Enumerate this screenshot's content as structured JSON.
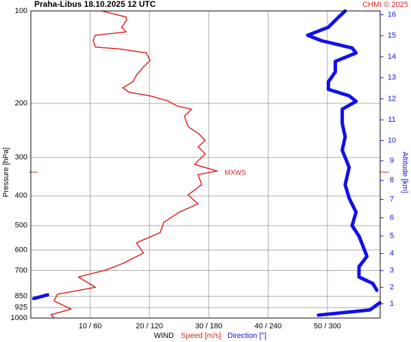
{
  "chart_data": {
    "type": "line",
    "title": "Praha-Libus    18.10.2025 12 UTC",
    "credit": "CHMI © 2025",
    "ylabel": "Pressure [hPa]",
    "y2label": "Altitude [km]",
    "xlabel_parts": [
      "WIND",
      "Speed [m/s]",
      "Direction [°]"
    ],
    "ylim": [
      100,
      1000
    ],
    "log_y": true,
    "yticks": [
      100,
      200,
      300,
      400,
      500,
      600,
      700,
      850,
      925,
      1000
    ],
    "y2ticks": [
      1,
      2,
      3,
      4,
      5,
      6,
      7,
      8,
      9,
      10,
      11,
      12,
      13,
      14,
      15,
      16
    ],
    "xlim": [
      0,
      58.9
    ],
    "x2lim": [
      0,
      353.4
    ],
    "xticks": [
      {
        "value": 10,
        "label": "10 / 60"
      },
      {
        "value": 20,
        "label": "20 / 120"
      },
      {
        "value": 30,
        "label": "30 / 180"
      },
      {
        "value": 40,
        "label": "40 / 240"
      },
      {
        "value": 50,
        "label": "50 / 300"
      }
    ],
    "grid": true,
    "annotation": {
      "label": "MXWS",
      "pressure": 335,
      "color": "#e02020"
    },
    "series": [
      {
        "name": "Speed [m/s]",
        "color": "#e02020",
        "width": 1.5,
        "pressure": [
          100,
          104.7,
          107.4,
          113,
          117,
          120,
          125,
          131,
          133,
          137,
          145,
          152,
          162,
          170,
          178,
          184,
          189,
          196,
          204,
          209,
          220,
          238,
          250,
          264,
          277,
          292,
          316,
          332,
          341,
          368,
          397,
          425,
          452,
          488,
          527,
          569,
          614,
          664,
          698,
          735,
          794,
          836,
          879,
          935,
          975,
          1000
        ],
        "values": [
          12.0,
          16.1,
          16.1,
          15.3,
          16.1,
          10.9,
          10.5,
          10.9,
          15.0,
          19.5,
          20.1,
          19.0,
          17.8,
          17.2,
          15.5,
          16.6,
          20.1,
          23.0,
          24.7,
          27.1,
          25.9,
          26.5,
          28.2,
          29.4,
          28.2,
          29.4,
          27.6,
          31.4,
          28.2,
          28.8,
          26.5,
          28.2,
          25.0,
          22.4,
          21.8,
          17.8,
          19.0,
          15.5,
          12.6,
          8.0,
          10.9,
          4.5,
          3.9,
          6.8,
          3.4,
          3.9
        ]
      },
      {
        "name": "Direction [°]",
        "color": "#1010f0",
        "width": 5,
        "axis": "x2",
        "pressure": [
          100,
          105,
          113,
          120,
          125,
          132,
          137,
          146,
          158,
          170,
          180,
          189,
          197,
          209,
          232,
          257,
          284,
          323,
          368,
          407,
          452,
          500,
          541,
          583,
          630,
          680,
          735,
          772,
          812,
          null,
          840,
          864,
          null,
          892,
          941,
          978
        ],
        "values": [
          318,
          311,
          301,
          280,
          294,
          325,
          329,
          308,
          308,
          301,
          301,
          322,
          329,
          315,
          315,
          318,
          315,
          322,
          318,
          322,
          329,
          325,
          332,
          336,
          340,
          332,
          332,
          346,
          350,
          null,
          17,
          3,
          null,
          353,
          343,
          291
        ]
      }
    ]
  }
}
